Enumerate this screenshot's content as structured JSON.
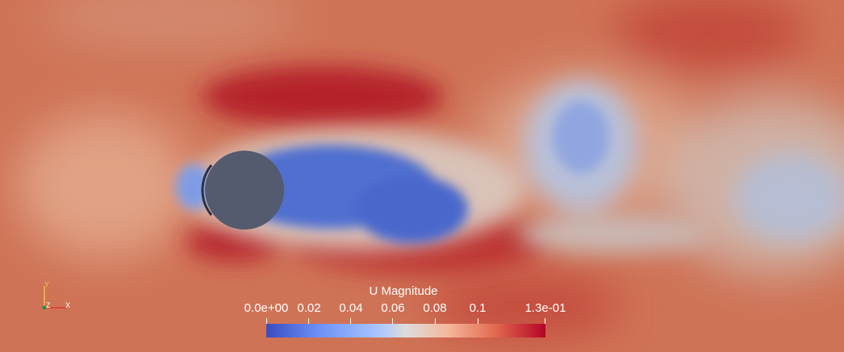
{
  "colorbar": {
    "title": "U Magnitude",
    "ticks": [
      "0.0e+00",
      "0.02",
      "0.04",
      "0.06",
      "0.08",
      "0.1",
      "1.3e-01"
    ],
    "min": 0.0,
    "max": 0.13,
    "colormap": [
      "#3b4cc0",
      "#6a8ef5",
      "#a9c5fd",
      "#dcdcdc",
      "#f4b79b",
      "#e2694f",
      "#b40426"
    ]
  },
  "axes": {
    "x": "X",
    "y": "Y",
    "z": "Z"
  },
  "colors": {
    "background": "#cf6f52",
    "cylinder": "#545b6e",
    "wake": "#4f6fd0"
  }
}
